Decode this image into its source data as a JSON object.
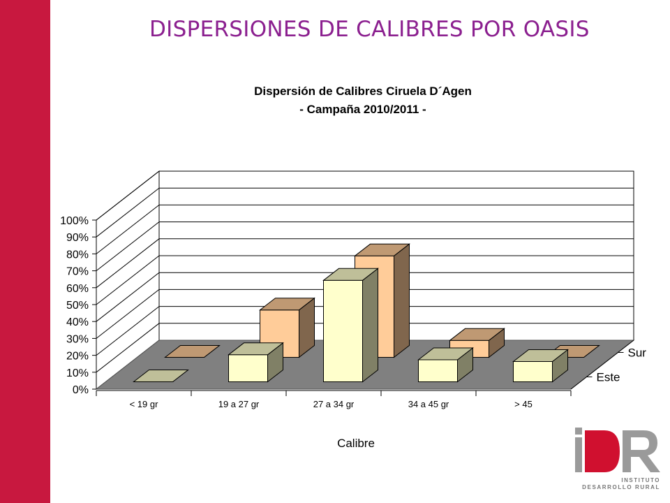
{
  "slide": {
    "title": "DISPERSIONES DE CALIBRES POR OASIS",
    "sidebar_color": "#c8183f",
    "title_color": "#8b1f8f"
  },
  "chart_data": {
    "type": "bar",
    "title": [
      "Dispersión de Calibres Ciruela D´Agen",
      "- Campaña 2010/2011 -"
    ],
    "xlabel": "Calibre",
    "ylabel": "",
    "ylim": [
      0,
      100
    ],
    "yticks": [
      "0%",
      "10%",
      "20%",
      "30%",
      "40%",
      "50%",
      "60%",
      "70%",
      "80%",
      "90%",
      "100%"
    ],
    "categories": [
      "< 19 gr",
      "19 a 27 gr",
      "27 a 34 gr",
      "34 a 45 gr",
      "> 45"
    ],
    "series": [
      {
        "name": "Este",
        "values": [
          0,
          16,
          60,
          13,
          12
        ],
        "color": "#ffffcc"
      },
      {
        "name": "Sur",
        "values": [
          0,
          28,
          60,
          10,
          0
        ],
        "color": "#ffcc99"
      }
    ],
    "grid": true,
    "floor_color": "#808080",
    "legend": "series labels on depth axis, right"
  },
  "logo": {
    "mark": "IDR",
    "line1": "INSTITUTO",
    "line2": "DESARROLLO RURAL"
  }
}
